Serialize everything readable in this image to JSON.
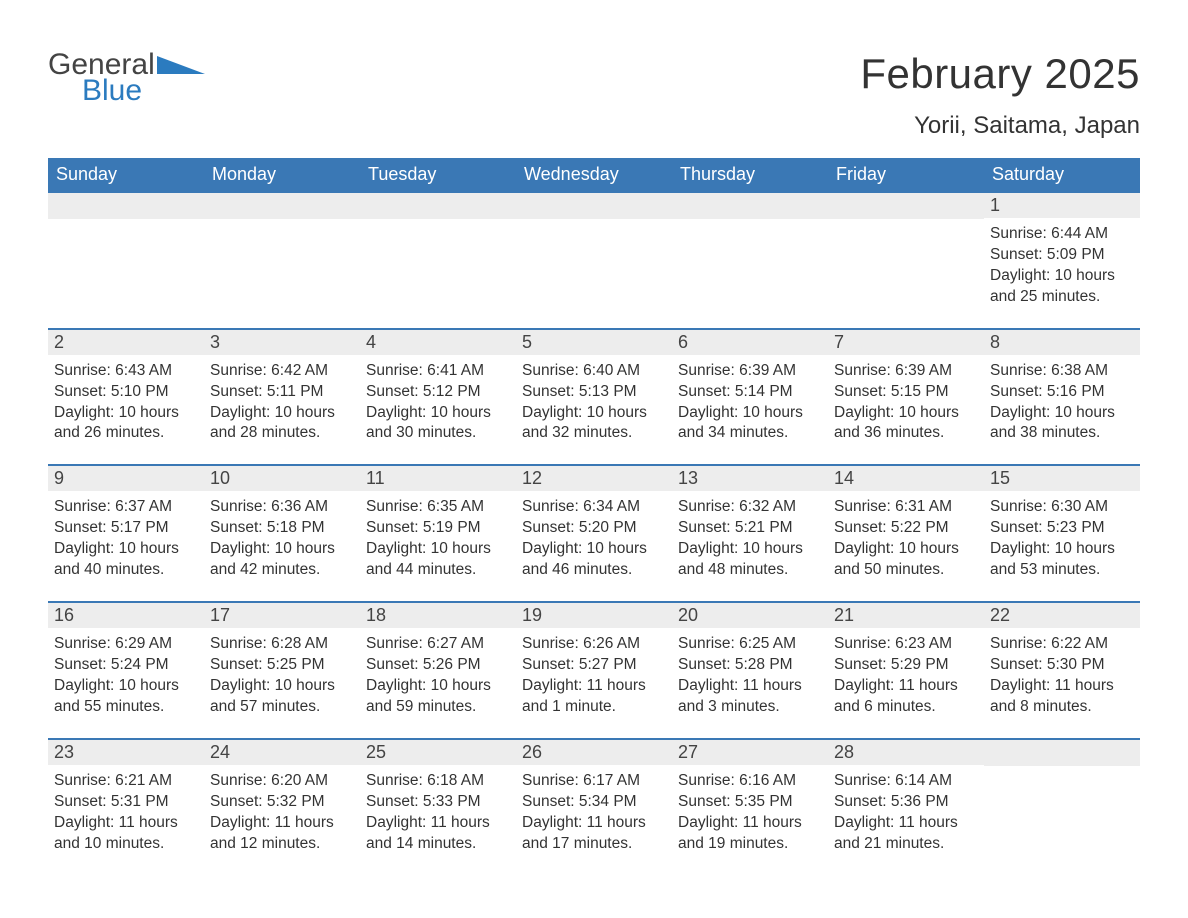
{
  "brand": {
    "word1": "General",
    "word2": "Blue",
    "word1_color": "#444444",
    "word2_color": "#2b7bbf",
    "shape_color": "#2b7bbf"
  },
  "title": "February 2025",
  "location": "Yorii, Saitama, Japan",
  "header_bg": "#3a78b5",
  "header_fg": "#ffffff",
  "daynum_bg": "#ededed",
  "row_border": "#3a78b5",
  "text_color": "#333333",
  "body_fontsize": 15.5,
  "title_fontsize": 42,
  "location_fontsize": 24,
  "dayheader_fontsize": 18,
  "days_of_week": [
    "Sunday",
    "Monday",
    "Tuesday",
    "Wednesday",
    "Thursday",
    "Friday",
    "Saturday"
  ],
  "weeks": [
    [
      null,
      null,
      null,
      null,
      null,
      null,
      {
        "n": "1",
        "sunrise": "Sunrise: 6:44 AM",
        "sunset": "Sunset: 5:09 PM",
        "daylight": "Daylight: 10 hours and 25 minutes."
      }
    ],
    [
      {
        "n": "2",
        "sunrise": "Sunrise: 6:43 AM",
        "sunset": "Sunset: 5:10 PM",
        "daylight": "Daylight: 10 hours and 26 minutes."
      },
      {
        "n": "3",
        "sunrise": "Sunrise: 6:42 AM",
        "sunset": "Sunset: 5:11 PM",
        "daylight": "Daylight: 10 hours and 28 minutes."
      },
      {
        "n": "4",
        "sunrise": "Sunrise: 6:41 AM",
        "sunset": "Sunset: 5:12 PM",
        "daylight": "Daylight: 10 hours and 30 minutes."
      },
      {
        "n": "5",
        "sunrise": "Sunrise: 6:40 AM",
        "sunset": "Sunset: 5:13 PM",
        "daylight": "Daylight: 10 hours and 32 minutes."
      },
      {
        "n": "6",
        "sunrise": "Sunrise: 6:39 AM",
        "sunset": "Sunset: 5:14 PM",
        "daylight": "Daylight: 10 hours and 34 minutes."
      },
      {
        "n": "7",
        "sunrise": "Sunrise: 6:39 AM",
        "sunset": "Sunset: 5:15 PM",
        "daylight": "Daylight: 10 hours and 36 minutes."
      },
      {
        "n": "8",
        "sunrise": "Sunrise: 6:38 AM",
        "sunset": "Sunset: 5:16 PM",
        "daylight": "Daylight: 10 hours and 38 minutes."
      }
    ],
    [
      {
        "n": "9",
        "sunrise": "Sunrise: 6:37 AM",
        "sunset": "Sunset: 5:17 PM",
        "daylight": "Daylight: 10 hours and 40 minutes."
      },
      {
        "n": "10",
        "sunrise": "Sunrise: 6:36 AM",
        "sunset": "Sunset: 5:18 PM",
        "daylight": "Daylight: 10 hours and 42 minutes."
      },
      {
        "n": "11",
        "sunrise": "Sunrise: 6:35 AM",
        "sunset": "Sunset: 5:19 PM",
        "daylight": "Daylight: 10 hours and 44 minutes."
      },
      {
        "n": "12",
        "sunrise": "Sunrise: 6:34 AM",
        "sunset": "Sunset: 5:20 PM",
        "daylight": "Daylight: 10 hours and 46 minutes."
      },
      {
        "n": "13",
        "sunrise": "Sunrise: 6:32 AM",
        "sunset": "Sunset: 5:21 PM",
        "daylight": "Daylight: 10 hours and 48 minutes."
      },
      {
        "n": "14",
        "sunrise": "Sunrise: 6:31 AM",
        "sunset": "Sunset: 5:22 PM",
        "daylight": "Daylight: 10 hours and 50 minutes."
      },
      {
        "n": "15",
        "sunrise": "Sunrise: 6:30 AM",
        "sunset": "Sunset: 5:23 PM",
        "daylight": "Daylight: 10 hours and 53 minutes."
      }
    ],
    [
      {
        "n": "16",
        "sunrise": "Sunrise: 6:29 AM",
        "sunset": "Sunset: 5:24 PM",
        "daylight": "Daylight: 10 hours and 55 minutes."
      },
      {
        "n": "17",
        "sunrise": "Sunrise: 6:28 AM",
        "sunset": "Sunset: 5:25 PM",
        "daylight": "Daylight: 10 hours and 57 minutes."
      },
      {
        "n": "18",
        "sunrise": "Sunrise: 6:27 AM",
        "sunset": "Sunset: 5:26 PM",
        "daylight": "Daylight: 10 hours and 59 minutes."
      },
      {
        "n": "19",
        "sunrise": "Sunrise: 6:26 AM",
        "sunset": "Sunset: 5:27 PM",
        "daylight": "Daylight: 11 hours and 1 minute."
      },
      {
        "n": "20",
        "sunrise": "Sunrise: 6:25 AM",
        "sunset": "Sunset: 5:28 PM",
        "daylight": "Daylight: 11 hours and 3 minutes."
      },
      {
        "n": "21",
        "sunrise": "Sunrise: 6:23 AM",
        "sunset": "Sunset: 5:29 PM",
        "daylight": "Daylight: 11 hours and 6 minutes."
      },
      {
        "n": "22",
        "sunrise": "Sunrise: 6:22 AM",
        "sunset": "Sunset: 5:30 PM",
        "daylight": "Daylight: 11 hours and 8 minutes."
      }
    ],
    [
      {
        "n": "23",
        "sunrise": "Sunrise: 6:21 AM",
        "sunset": "Sunset: 5:31 PM",
        "daylight": "Daylight: 11 hours and 10 minutes."
      },
      {
        "n": "24",
        "sunrise": "Sunrise: 6:20 AM",
        "sunset": "Sunset: 5:32 PM",
        "daylight": "Daylight: 11 hours and 12 minutes."
      },
      {
        "n": "25",
        "sunrise": "Sunrise: 6:18 AM",
        "sunset": "Sunset: 5:33 PM",
        "daylight": "Daylight: 11 hours and 14 minutes."
      },
      {
        "n": "26",
        "sunrise": "Sunrise: 6:17 AM",
        "sunset": "Sunset: 5:34 PM",
        "daylight": "Daylight: 11 hours and 17 minutes."
      },
      {
        "n": "27",
        "sunrise": "Sunrise: 6:16 AM",
        "sunset": "Sunset: 5:35 PM",
        "daylight": "Daylight: 11 hours and 19 minutes."
      },
      {
        "n": "28",
        "sunrise": "Sunrise: 6:14 AM",
        "sunset": "Sunset: 5:36 PM",
        "daylight": "Daylight: 11 hours and 21 minutes."
      },
      null
    ]
  ]
}
